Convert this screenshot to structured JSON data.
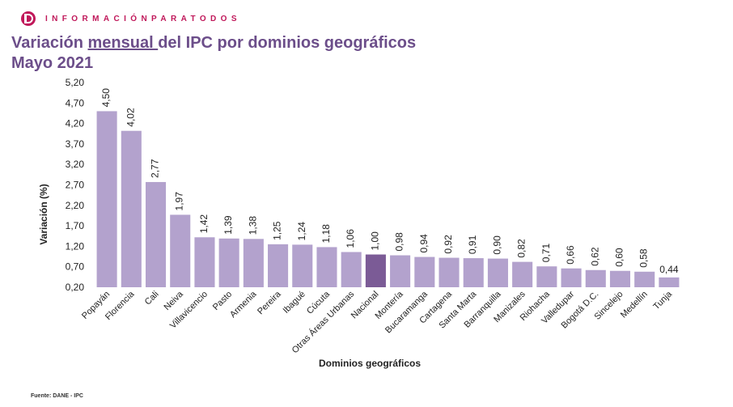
{
  "header": {
    "tagline": "INFORMACIÓNPARATODOS"
  },
  "title": {
    "part1": "Variación ",
    "part2": "mensual ",
    "part3": "del IPC por dominios geográficos",
    "line2": "Mayo 2021"
  },
  "source": "Fuente: DANE - IPC",
  "colors": {
    "bar": "#b3a2cd",
    "highlight": "#7b5b96",
    "title": "#6c4e8a",
    "brand": "#c0185a"
  },
  "chart_data": {
    "type": "bar",
    "xlabel": "Dominios geográficos",
    "ylabel": "Variación (%)",
    "ylim": [
      0.2,
      5.2
    ],
    "yticks": [
      "0,20",
      "0,70",
      "1,20",
      "1,70",
      "2,20",
      "2,70",
      "3,20",
      "3,70",
      "4,20",
      "4,70",
      "5,20"
    ],
    "grid": false,
    "highlight_category": "Nacional",
    "categories": [
      "Popayán",
      "Florencia",
      "Cali",
      "Neiva",
      "Villavicencio",
      "Pasto",
      "Armenia",
      "Pereira",
      "Ibagué",
      "Cúcuta",
      "Otras Áreas Urbanas",
      "Nacional",
      "Montería",
      "Bucaramanga",
      "Cartagena",
      "Santa Marta",
      "Barranquilla",
      "Manizales",
      "Riohacha",
      "Valledupar",
      "Bogotá D.C.",
      "Sincelejo",
      "Medellín",
      "Tunja"
    ],
    "values": [
      4.5,
      4.02,
      2.77,
      1.97,
      1.42,
      1.39,
      1.38,
      1.25,
      1.24,
      1.18,
      1.06,
      1.0,
      0.98,
      0.94,
      0.92,
      0.91,
      0.9,
      0.82,
      0.71,
      0.66,
      0.62,
      0.6,
      0.58,
      0.44
    ]
  }
}
